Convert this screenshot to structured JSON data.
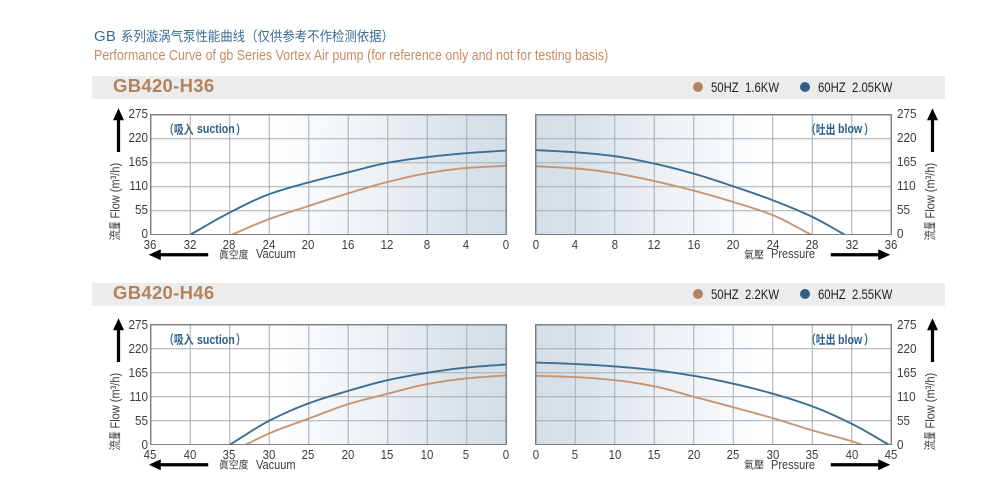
{
  "page": {
    "title_prefix": "GB",
    "title_cn": "系列漩涡气泵性能曲线（仅供参考不作检测依据）",
    "title_full": "GB 系列漩涡气泵性能曲线（仅供参考不作检测依据）",
    "subtitle": "Performance Curve of gb Series Vortex Air pump (for reference only and not for testing basis)"
  },
  "colors": {
    "title_blue": "#3a6b91",
    "subtitle_tan": "#c88c63",
    "band_bg": "#ececec",
    "band_title_tan": "#b2835c",
    "curve_50hz_tan": "#c79572",
    "curve_60hz_blue": "#3d6f92",
    "dot_50hz_tan": "#b48362",
    "dot_60hz_blue": "#2f6084",
    "plot_blue": "#d2dee8",
    "grid_gray": "#a6aeb4",
    "border_gray": "#6d7377",
    "tick_text": "#3d3d3d",
    "arrow_black": "#242424",
    "inplot_blue": "#2d6089"
  },
  "sections": [
    {
      "model": "GB420-H36",
      "legend": [
        {
          "label": "50HZ  1.6KW",
          "series": "50HZ"
        },
        {
          "label": "60HZ  2.05KW",
          "series": "60HZ"
        }
      ]
    },
    {
      "model": "GB420-H46",
      "legend": [
        {
          "label": "50HZ  2.2KW",
          "series": "50HZ"
        },
        {
          "label": "60HZ  2.55KW",
          "series": "60HZ"
        }
      ]
    }
  ],
  "axis": {
    "flow_cn": "流量",
    "flow_en": "Flow (m³/h)",
    "vacuum_cn": "眞空度",
    "vacuum_en": "Vacuum",
    "pressure_cn": "氣壓",
    "pressure_en": "Pressure",
    "suction_cn": "（吸入",
    "suction_en": "suction",
    "blow_cn": "（吐出",
    "blow_en": "blow",
    "paren_close": "）"
  },
  "chart_data": [
    {
      "id": "h36-suction",
      "type": "line",
      "section": 0,
      "side": "left",
      "title": "（吸入 suction）",
      "xlabel": "眞空度 Vacuum",
      "ylabel": "流量 Flow (m³/h)",
      "x_ticks": [
        36,
        32,
        28,
        24,
        20,
        16,
        12,
        8,
        4,
        0
      ],
      "x_max": 36,
      "x_reversed": true,
      "y_ticks": [
        0,
        55,
        110,
        165,
        220,
        275
      ],
      "ylim": [
        0,
        275
      ],
      "series": [
        {
          "name": "50HZ",
          "color_key": "curve_50hz_tan",
          "points": [
            [
              0,
              158
            ],
            [
              4,
              153
            ],
            [
              8,
              141
            ],
            [
              12,
              121
            ],
            [
              16,
              95
            ],
            [
              20,
              66
            ],
            [
              24,
              36
            ],
            [
              27.8,
              0
            ]
          ]
        },
        {
          "name": "60HZ",
          "color_key": "curve_60hz_blue",
          "points": [
            [
              0,
              193
            ],
            [
              4,
              187
            ],
            [
              8,
              178
            ],
            [
              12,
              165
            ],
            [
              16,
              143
            ],
            [
              20,
              120
            ],
            [
              24,
              93
            ],
            [
              28,
              51
            ],
            [
              32,
              0
            ]
          ]
        }
      ]
    },
    {
      "id": "h36-blow",
      "type": "line",
      "section": 0,
      "side": "right",
      "title": "（吐出 blow）",
      "xlabel": "氣壓 Pressure",
      "ylabel": "流量 Flow (m³/h)",
      "x_ticks": [
        0,
        4,
        8,
        12,
        16,
        20,
        24,
        28,
        32,
        36
      ],
      "x_max": 36,
      "x_reversed": false,
      "y_ticks": [
        0,
        55,
        110,
        165,
        220,
        275
      ],
      "ylim": [
        0,
        275
      ],
      "series": [
        {
          "name": "50HZ",
          "color_key": "curve_50hz_tan",
          "points": [
            [
              0,
              157
            ],
            [
              4,
              152
            ],
            [
              8,
              141
            ],
            [
              12,
              123
            ],
            [
              16,
              101
            ],
            [
              20,
              75
            ],
            [
              24,
              45
            ],
            [
              27.9,
              0
            ]
          ]
        },
        {
          "name": "60HZ",
          "color_key": "curve_60hz_blue",
          "points": [
            [
              0,
              194
            ],
            [
              4,
              189
            ],
            [
              8,
              180
            ],
            [
              12,
              163
            ],
            [
              16,
              140
            ],
            [
              20,
              111
            ],
            [
              24,
              79
            ],
            [
              28,
              41
            ],
            [
              31.3,
              0
            ]
          ]
        }
      ]
    },
    {
      "id": "h46-suction",
      "type": "line",
      "section": 1,
      "side": "left",
      "title": "（吸入 suction）",
      "xlabel": "眞空度 Vacuum",
      "ylabel": "流量 Flow (m³/h)",
      "x_ticks": [
        45,
        40,
        35,
        30,
        25,
        20,
        15,
        10,
        5,
        0
      ],
      "x_max": 45,
      "x_reversed": true,
      "y_ticks": [
        0,
        55,
        110,
        165,
        220,
        275
      ],
      "ylim": [
        0,
        275
      ],
      "series": [
        {
          "name": "50HZ",
          "color_key": "curve_50hz_tan",
          "points": [
            [
              0,
              159
            ],
            [
              5,
              152
            ],
            [
              10,
              139
            ],
            [
              15,
              117
            ],
            [
              20,
              93
            ],
            [
              25,
              60
            ],
            [
              30,
              26
            ],
            [
              33,
              0
            ]
          ]
        },
        {
          "name": "60HZ",
          "color_key": "curve_60hz_blue",
          "points": [
            [
              0,
              184
            ],
            [
              5,
              177
            ],
            [
              10,
              165
            ],
            [
              15,
              148
            ],
            [
              20,
              123.5
            ],
            [
              25,
              95
            ],
            [
              30,
              55
            ],
            [
              35,
              0
            ]
          ]
        }
      ]
    },
    {
      "id": "h46-blow",
      "type": "line",
      "section": 1,
      "side": "right",
      "title": "（吐出 blow）",
      "xlabel": "氣壓 Pressure",
      "ylabel": "流量 Flow (m³/h)",
      "x_ticks": [
        0,
        5,
        10,
        15,
        20,
        25,
        30,
        35,
        40,
        45
      ],
      "x_max": 45,
      "x_reversed": false,
      "y_ticks": [
        0,
        55,
        110,
        165,
        220,
        275
      ],
      "ylim": [
        0,
        275
      ],
      "series": [
        {
          "name": "50HZ",
          "color_key": "curve_50hz_tan",
          "points": [
            [
              0,
              158
            ],
            [
              5,
              155
            ],
            [
              10,
              148
            ],
            [
              15,
              134
            ],
            [
              20,
              110
            ],
            [
              25,
              86
            ],
            [
              30,
              61
            ],
            [
              35,
              33
            ],
            [
              40,
              8
            ],
            [
              41.3,
              0
            ]
          ]
        },
        {
          "name": "60HZ",
          "color_key": "curve_60hz_blue",
          "points": [
            [
              0,
              188.5
            ],
            [
              5,
              185
            ],
            [
              10,
              179.5
            ],
            [
              15,
              171
            ],
            [
              20,
              158
            ],
            [
              25,
              140
            ],
            [
              30,
              117
            ],
            [
              35,
              88
            ],
            [
              40,
              48
            ],
            [
              44.7,
              0
            ]
          ]
        }
      ]
    }
  ]
}
